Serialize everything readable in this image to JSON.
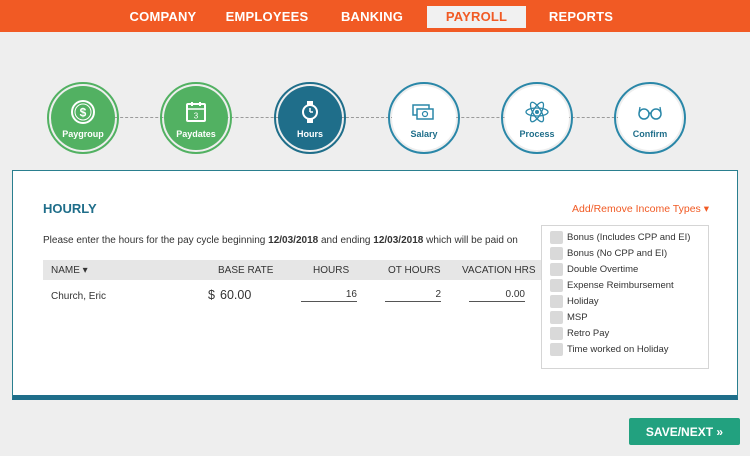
{
  "nav": {
    "items": [
      {
        "label": "COMPANY",
        "active": false
      },
      {
        "label": "EMPLOYEES",
        "active": false
      },
      {
        "label": "BANKING",
        "active": false
      },
      {
        "label": "PAYROLL",
        "active": true
      },
      {
        "label": "REPORTS",
        "active": false
      }
    ]
  },
  "steps": [
    {
      "label": "Paygroup",
      "state": "done",
      "icon": "dollar-coin-icon"
    },
    {
      "label": "Paydates",
      "state": "done",
      "icon": "calendar-icon"
    },
    {
      "label": "Hours",
      "state": "current",
      "icon": "watch-icon"
    },
    {
      "label": "Salary",
      "state": "todo",
      "icon": "cash-icon"
    },
    {
      "label": "Process",
      "state": "todo",
      "icon": "atom-icon"
    },
    {
      "label": "Confirm",
      "state": "todo",
      "icon": "glasses-icon"
    }
  ],
  "section": {
    "title": "HOURLY",
    "add_remove": "Add/Remove Income Types ▾",
    "desc_prefix": "Please enter the hours for the pay cycle beginning ",
    "begin_date": "12/03/2018",
    "desc_middle": " and ending ",
    "end_date": "12/03/2018",
    "desc_suffix": " which will be paid on"
  },
  "table": {
    "headers": {
      "name": "NAME ▾",
      "base_rate": "BASE RATE",
      "hours": "HOURS",
      "ot_hours": "OT HOURS",
      "vacation_hrs": "VACATION HRS"
    },
    "rows": [
      {
        "name": "Church, Eric",
        "currency": "$",
        "base_rate": "60.00",
        "hours": "16",
        "ot_hours": "2",
        "vacation_hrs": "0.00"
      }
    ]
  },
  "income_types": [
    "Bonus (Includes CPP and EI)",
    "Bonus (No CPP and EI)",
    "Double Overtime",
    "Expense Reimbursement",
    "Holiday",
    "MSP",
    "Retro Pay",
    "Time worked on Holiday"
  ],
  "save_button": "SAVE/NEXT »",
  "colors": {
    "brand_orange": "#f15a24",
    "done_green": "#52b162",
    "current_teal": "#1f6e8a",
    "save_green": "#22a17f"
  }
}
